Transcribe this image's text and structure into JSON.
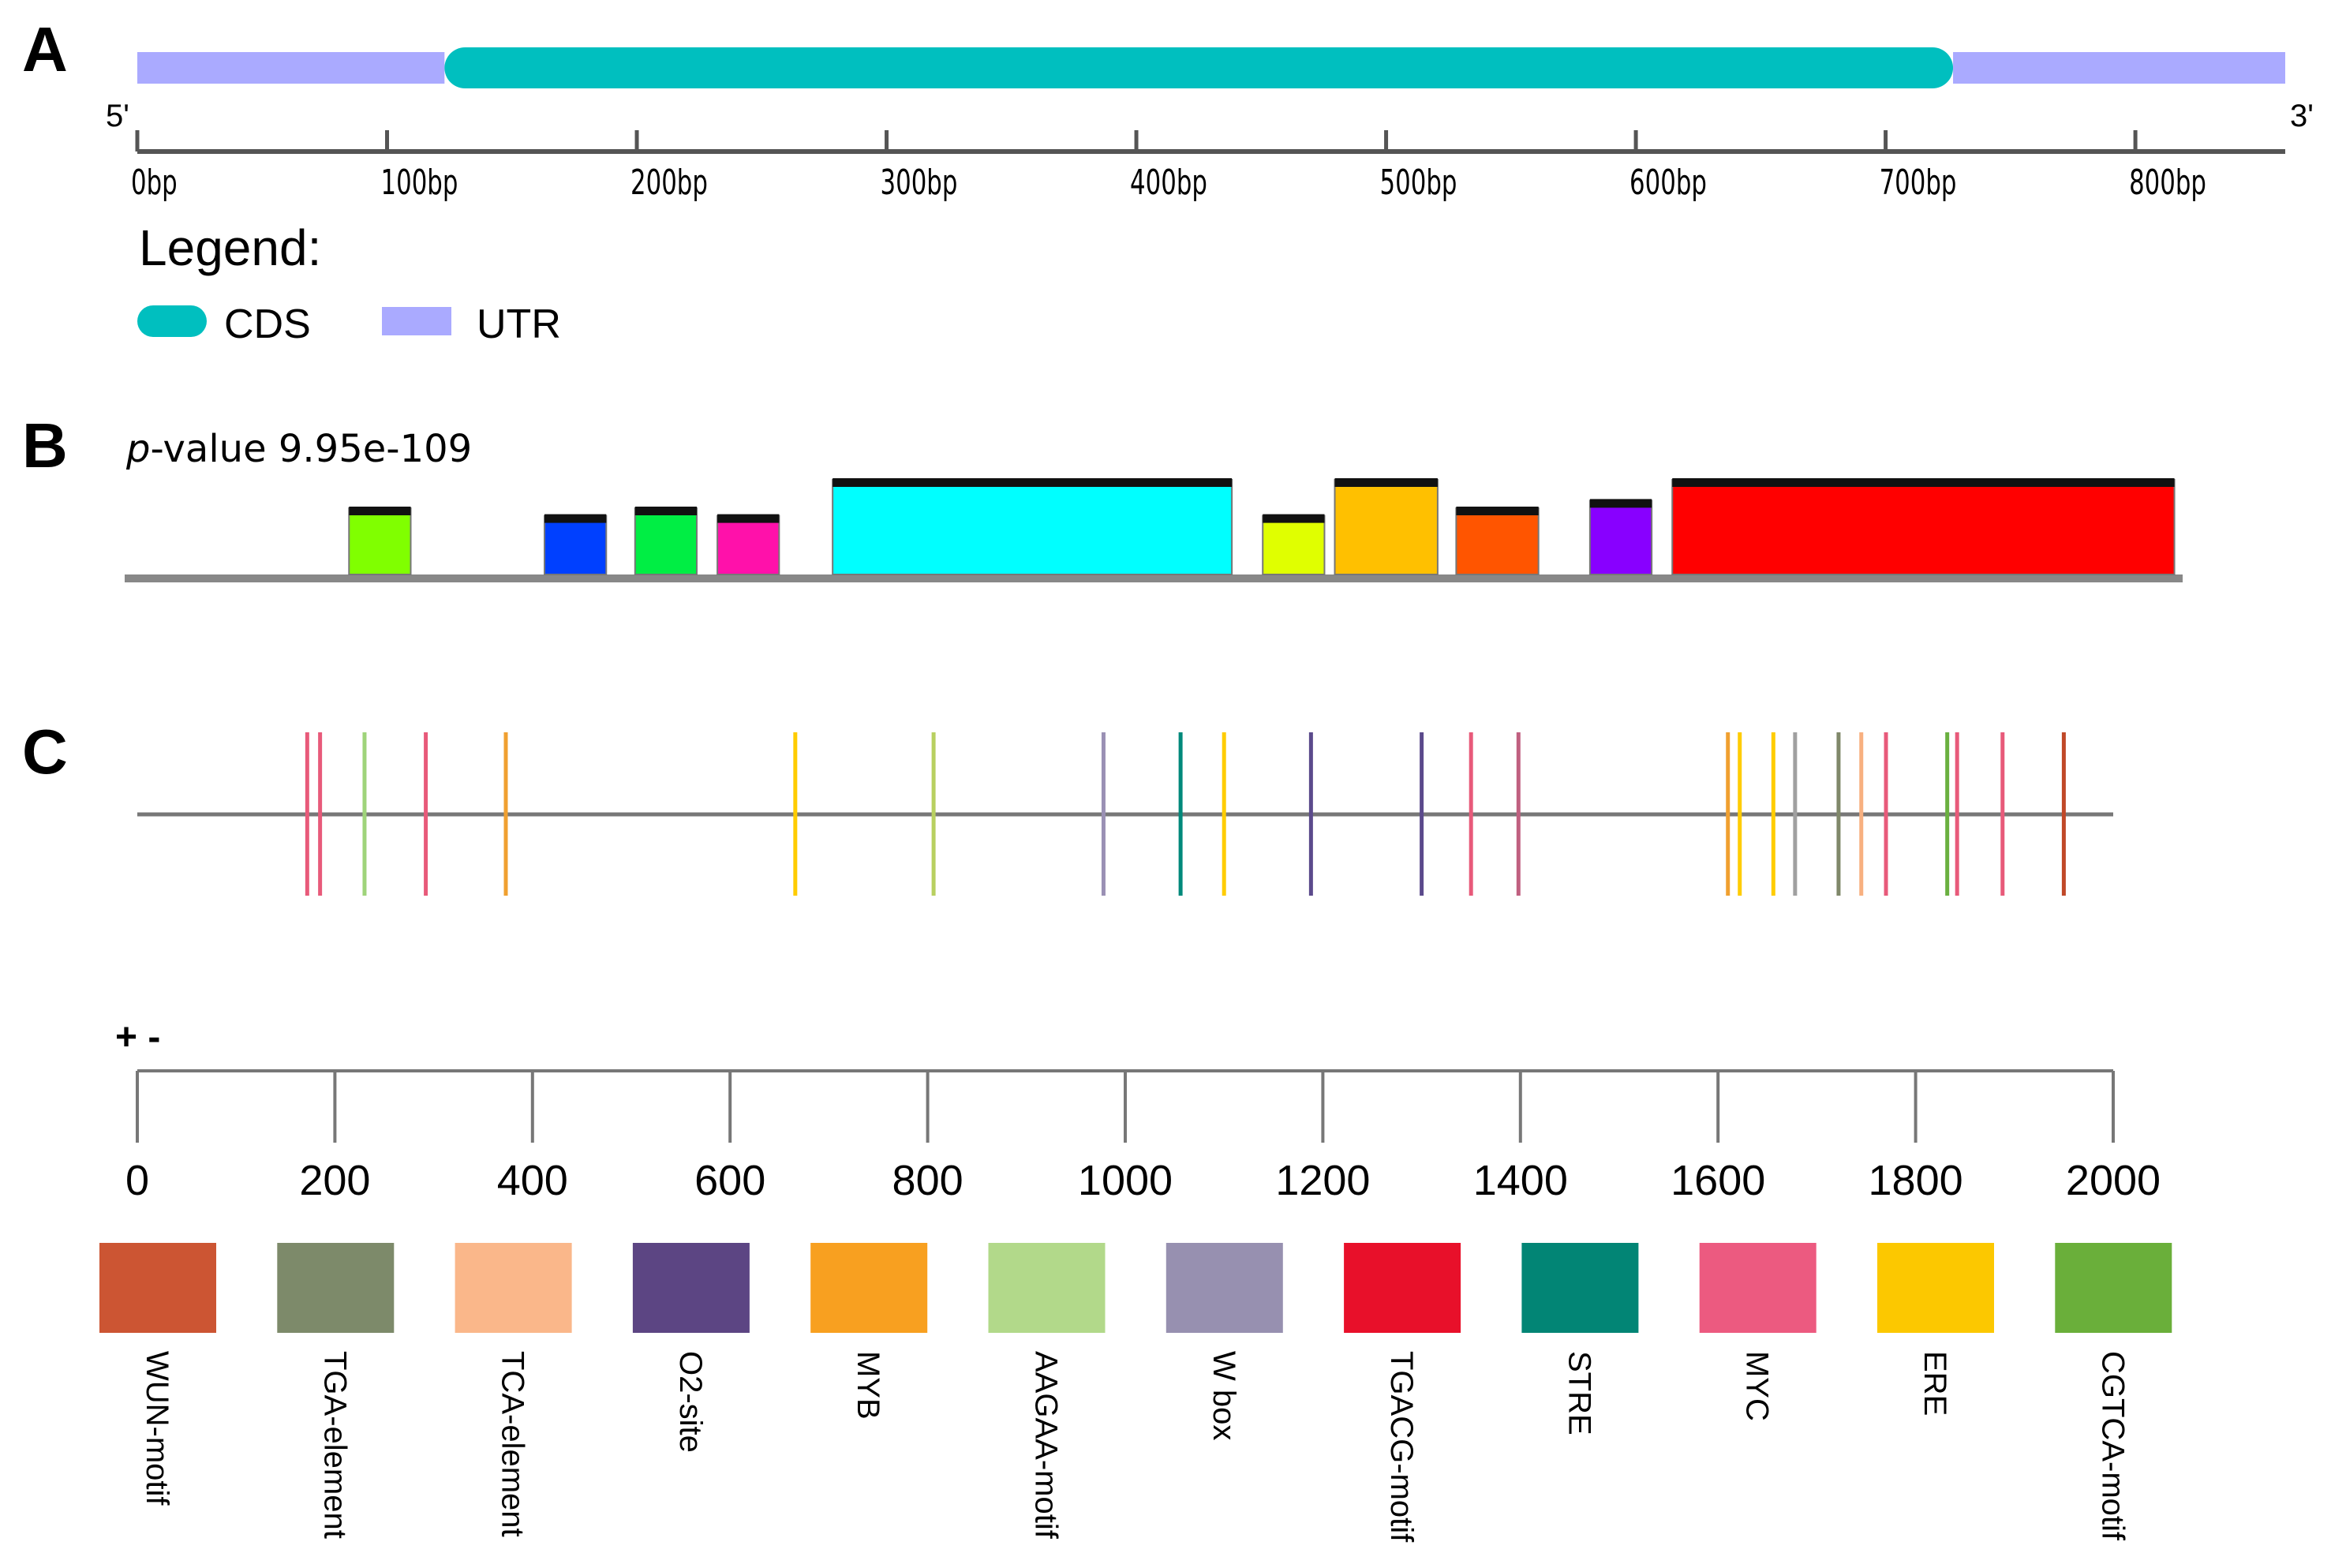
{
  "panel_a": {
    "label": "A",
    "five_prime": "5'",
    "three_prime": "3'",
    "gene_length_bp": 860,
    "utr5": {
      "start": 0,
      "end": 123
    },
    "cds": {
      "start": 123,
      "end": 727
    },
    "utr3": {
      "start": 727,
      "end": 860
    },
    "axis_ticks": [
      0,
      100,
      200,
      300,
      400,
      500,
      600,
      700,
      800
    ],
    "axis_tick_labels": [
      "0bp",
      "100bp",
      "200bp",
      "300bp",
      "400bp",
      "500bp",
      "600bp",
      "700bp",
      "800bp"
    ],
    "legend_title": "Legend:",
    "legend": [
      {
        "label": "CDS",
        "color": "#00bfbf"
      },
      {
        "label": "UTR",
        "color": "#aaaaff"
      }
    ]
  },
  "panel_b": {
    "label": "B",
    "pvalue_prefix": "p",
    "pvalue_text": "-value 9.95e-109",
    "motifs": [
      {
        "start": 0.109,
        "end": 0.139,
        "height": 0.7,
        "color": "#80ff00"
      },
      {
        "start": 0.204,
        "end": 0.234,
        "height": 0.62,
        "color": "#0040ff"
      },
      {
        "start": 0.248,
        "end": 0.278,
        "height": 0.7,
        "color": "#00ee44"
      },
      {
        "start": 0.288,
        "end": 0.318,
        "height": 0.62,
        "color": "#ff11aa"
      },
      {
        "start": 0.344,
        "end": 0.538,
        "height": 1.0,
        "color": "#00ffff"
      },
      {
        "start": 0.553,
        "end": 0.583,
        "height": 0.62,
        "color": "#e0ff00"
      },
      {
        "start": 0.588,
        "end": 0.638,
        "height": 1.0,
        "color": "#ffc000"
      },
      {
        "start": 0.647,
        "end": 0.687,
        "height": 0.7,
        "color": "#ff5500"
      },
      {
        "start": 0.712,
        "end": 0.742,
        "height": 0.78,
        "color": "#8800ff"
      },
      {
        "start": 0.752,
        "end": 0.996,
        "height": 1.0,
        "color": "#ff0000"
      }
    ]
  },
  "panel_c": {
    "label": "C",
    "strand_label": "+ -",
    "axis_ticks": [
      "0",
      "200",
      "400",
      "600",
      "800",
      "1000",
      "1200",
      "1400",
      "1600",
      "1800",
      "2000"
    ],
    "axis_min": 0,
    "axis_max": 2000,
    "sites": [
      {
        "pos": 172,
        "color": "#e85a7a"
      },
      {
        "pos": 185,
        "color": "#e85a7a"
      },
      {
        "pos": 230,
        "color": "#9fd47a"
      },
      {
        "pos": 292,
        "color": "#e85a7a"
      },
      {
        "pos": 373,
        "color": "#f0a030"
      },
      {
        "pos": 666,
        "color": "#ffcc00"
      },
      {
        "pos": 806,
        "color": "#b8d060"
      },
      {
        "pos": 978,
        "color": "#9a90b4"
      },
      {
        "pos": 1056,
        "color": "#00897b"
      },
      {
        "pos": 1100,
        "color": "#ffcc00"
      },
      {
        "pos": 1188,
        "color": "#5b4a8c"
      },
      {
        "pos": 1300,
        "color": "#5b4a8c"
      },
      {
        "pos": 1350,
        "color": "#e85a7a"
      },
      {
        "pos": 1398,
        "color": "#c06080"
      },
      {
        "pos": 1610,
        "color": "#f0a030"
      },
      {
        "pos": 1622,
        "color": "#ffcc00"
      },
      {
        "pos": 1656,
        "color": "#ffcc00"
      },
      {
        "pos": 1678,
        "color": "#a0a0a0"
      },
      {
        "pos": 1722,
        "color": "#80886a"
      },
      {
        "pos": 1745,
        "color": "#f8b080"
      },
      {
        "pos": 1770,
        "color": "#e85a7a"
      },
      {
        "pos": 1832,
        "color": "#6ab040"
      },
      {
        "pos": 1842,
        "color": "#e85a7a"
      },
      {
        "pos": 1888,
        "color": "#e85a7a"
      },
      {
        "pos": 1950,
        "color": "#c04828"
      }
    ],
    "legend": [
      {
        "label": "WUN-motif",
        "color": "#cc5533"
      },
      {
        "label": "TGA-element",
        "color": "#7d8a6a"
      },
      {
        "label": "TCA-element",
        "color": "#fab78a"
      },
      {
        "label": "O2-site",
        "color": "#5c4583"
      },
      {
        "label": "MYB",
        "color": "#f8a020"
      },
      {
        "label": "AAGAA-motif",
        "color": "#b2d98a"
      },
      {
        "label": "W box",
        "color": "#9790b0"
      },
      {
        "label": "TGACG-motif",
        "color": "#e8102a"
      },
      {
        "label": "STRE",
        "color": "#028575"
      },
      {
        "label": "MYC",
        "color": "#ec5a80"
      },
      {
        "label": "ERE",
        "color": "#fcc800"
      },
      {
        "label": "CGTCA-motif",
        "color": "#6aaf3a"
      }
    ]
  }
}
